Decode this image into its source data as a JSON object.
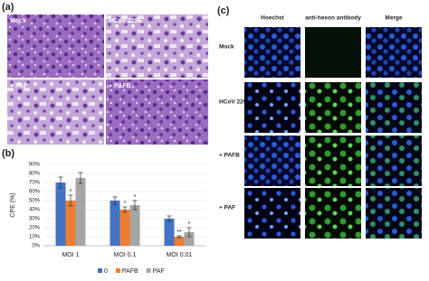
{
  "panel_a": {
    "label": "(a)",
    "captions": [
      "Mock",
      "HCoV 229E",
      "+ PAF",
      "+ PAFB"
    ]
  },
  "chart_data": {
    "type": "bar",
    "label": "(b)",
    "y_label": "CPE (%)",
    "categories": [
      "MOI 1",
      "MOI 0.1",
      "MOI 0.01"
    ],
    "series": [
      {
        "name": "0",
        "color": "#4472c4",
        "values": [
          70,
          50,
          30
        ],
        "errors": [
          6,
          4,
          3
        ],
        "significance": [
          null,
          null,
          null
        ]
      },
      {
        "name": "PAFB",
        "color": "#ed7d31",
        "values": [
          50,
          40,
          10
        ],
        "errors": [
          6,
          3,
          1
        ],
        "significance": [
          "*",
          "*",
          "**"
        ]
      },
      {
        "name": "PAF",
        "color": "#a5a5a5",
        "values": [
          75,
          45,
          15
        ],
        "errors": [
          6,
          5,
          5
        ],
        "significance": [
          null,
          "*",
          "*"
        ]
      }
    ],
    "ylim": [
      0,
      90
    ],
    "yticks": [
      {
        "value": 0,
        "label": "0%"
      },
      {
        "value": 10,
        "label": "10%"
      },
      {
        "value": 20,
        "label": "20%"
      },
      {
        "value": 30,
        "label": "30%"
      },
      {
        "value": 40,
        "label": "40%"
      },
      {
        "value": 50,
        "label": "50%"
      },
      {
        "value": 60,
        "label": "60%"
      },
      {
        "value": 70,
        "label": "70%"
      },
      {
        "value": 80,
        "label": "80%"
      },
      {
        "value": 90,
        "label": "90%"
      }
    ],
    "grid": true
  },
  "panel_c": {
    "label": "(c)",
    "columns": [
      "Hoechst",
      "anti-hexon antibody",
      "Merge"
    ],
    "rows": [
      "Mock",
      "HCoV 229E",
      "+ PAFB",
      "+ PAF"
    ]
  }
}
